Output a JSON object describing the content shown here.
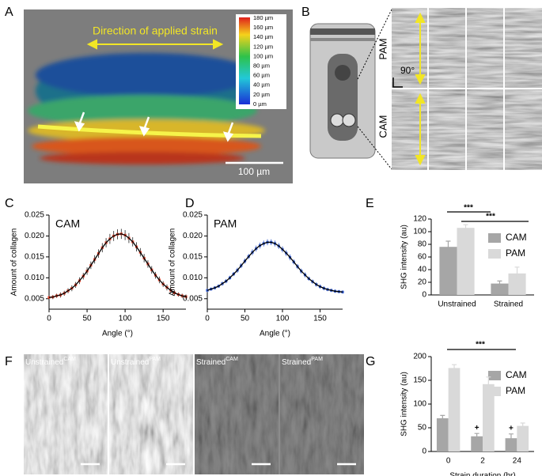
{
  "panel_labels": [
    "A",
    "B",
    "C",
    "D",
    "E",
    "F",
    "G"
  ],
  "panel_a": {
    "strain_label": "Direction of applied strain",
    "colorbar_ticks": [
      "180 µm",
      "160 µm",
      "140 µm",
      "120 µm",
      "100 µm",
      "80 µm",
      "60 µm",
      "40 µm",
      "20 µm",
      "0 µm"
    ],
    "scale_bar": "100 µm"
  },
  "panel_b": {
    "row_labels": [
      "PAM",
      "CAM"
    ],
    "angle": "90°"
  },
  "panel_f": {
    "images": [
      {
        "label": "Unstrained",
        "superscript": "CAM"
      },
      {
        "label": "Unstrained",
        "superscript": "PAM"
      },
      {
        "label": "Strained",
        "superscript": "CAM"
      },
      {
        "label": "Strained",
        "superscript": "PAM"
      }
    ]
  },
  "chart_data": [
    {
      "type": "line",
      "annotation": "CAM",
      "x_label": "Angle (°)",
      "y_label": "Amount of collagen",
      "x": [
        0,
        5,
        10,
        15,
        20,
        25,
        30,
        35,
        40,
        45,
        50,
        55,
        60,
        65,
        70,
        75,
        80,
        85,
        90,
        95,
        100,
        105,
        110,
        115,
        120,
        125,
        130,
        135,
        140,
        145,
        150,
        155,
        160,
        165,
        170,
        175,
        180
      ],
      "series": [
        {
          "color": "#e8452c",
          "line_color": "#000000",
          "error_color": "#222222",
          "values": [
            0.0053,
            0.0054,
            0.0057,
            0.0059,
            0.0063,
            0.0069,
            0.0075,
            0.0083,
            0.0093,
            0.0104,
            0.0116,
            0.013,
            0.0144,
            0.0158,
            0.0172,
            0.0184,
            0.0193,
            0.02,
            0.0204,
            0.0205,
            0.0202,
            0.0195,
            0.0186,
            0.0174,
            0.0161,
            0.0147,
            0.0133,
            0.0119,
            0.0106,
            0.0095,
            0.0085,
            0.0077,
            0.007,
            0.0064,
            0.006,
            0.0057,
            0.0055
          ],
          "errors": [
            0.0005,
            0.0005,
            0.0005,
            0.0006,
            0.0006,
            0.0006,
            0.0007,
            0.0007,
            0.0008,
            0.0008,
            0.0009,
            0.0009,
            0.001,
            0.001,
            0.0011,
            0.0011,
            0.0012,
            0.0012,
            0.0012,
            0.0012,
            0.0012,
            0.0012,
            0.0011,
            0.0011,
            0.001,
            0.001,
            0.0009,
            0.0009,
            0.0008,
            0.0008,
            0.0007,
            0.0007,
            0.0006,
            0.0006,
            0.0005,
            0.0005,
            0.0005
          ]
        }
      ],
      "xlim": [
        0,
        180
      ],
      "xticks": [
        0,
        50,
        100,
        150
      ],
      "ylim": [
        0.0025,
        0.025
      ],
      "yticks": [
        0.005,
        {
          "value": 0.01,
          "label": "0.010"
        },
        0.015,
        {
          "value": 0.02,
          "label": "0.020"
        },
        0.025
      ]
    },
    {
      "type": "line",
      "annotation": "PAM",
      "x_label": "Angle (°)",
      "y_label": "Amount of collagen",
      "x": [
        0,
        5,
        10,
        15,
        20,
        25,
        30,
        35,
        40,
        45,
        50,
        55,
        60,
        65,
        70,
        75,
        80,
        85,
        90,
        95,
        100,
        105,
        110,
        115,
        120,
        125,
        130,
        135,
        140,
        145,
        150,
        155,
        160,
        165,
        170,
        175,
        180
      ],
      "series": [
        {
          "color": "#2c55c8",
          "line_color": "#000000",
          "error_color": "#2c55c8",
          "values": [
            0.007,
            0.0073,
            0.0076,
            0.008,
            0.0086,
            0.0092,
            0.01,
            0.0109,
            0.0118,
            0.0129,
            0.014,
            0.0151,
            0.0161,
            0.017,
            0.0177,
            0.0182,
            0.0185,
            0.0185,
            0.0182,
            0.0176,
            0.0168,
            0.0159,
            0.0149,
            0.0138,
            0.0127,
            0.0116,
            0.0107,
            0.0098,
            0.0091,
            0.0084,
            0.0079,
            0.0075,
            0.0072,
            0.007,
            0.0068,
            0.0067,
            0.0066
          ],
          "errors": [
            0.0004,
            0.0004,
            0.0004,
            0.0004,
            0.0005,
            0.0005,
            0.0005,
            0.0005,
            0.0006,
            0.0006,
            0.0006,
            0.0006,
            0.0007,
            0.0007,
            0.0007,
            0.0007,
            0.0007,
            0.0007,
            0.0007,
            0.0007,
            0.0007,
            0.0007,
            0.0007,
            0.0006,
            0.0006,
            0.0006,
            0.0006,
            0.0005,
            0.0005,
            0.0005,
            0.0005,
            0.0005,
            0.0004,
            0.0004,
            0.0004,
            0.0004,
            0.0004
          ]
        }
      ],
      "xlim": [
        0,
        180
      ],
      "xticks": [
        0,
        50,
        100,
        150
      ],
      "ylim": [
        0.0025,
        0.025
      ],
      "yticks": [
        0.005,
        {
          "value": 0.01,
          "label": "0.010"
        },
        0.015,
        {
          "value": 0.02,
          "label": "0.020"
        },
        0.025
      ]
    },
    {
      "type": "bar",
      "y_label": "SHG intensity (au)",
      "categories": [
        "Unstrained",
        "Strained"
      ],
      "series": [
        {
          "name": "CAM",
          "color": "#a6a6a6",
          "values": [
            76,
            18
          ],
          "errors": [
            9,
            4
          ]
        },
        {
          "name": "PAM",
          "color": "#d9d9d9",
          "values": [
            106,
            34
          ],
          "errors": [
            5,
            10
          ]
        }
      ],
      "ylim": [
        0,
        120
      ],
      "yticks": [
        0,
        20,
        40,
        60,
        80,
        100,
        120
      ],
      "annotations": [
        "***",
        "***"
      ]
    },
    {
      "type": "bar",
      "y_label": "SHG intensity (au)",
      "x_label": "Strain duration (hr)",
      "categories": [
        "0",
        "2",
        "24"
      ],
      "series": [
        {
          "name": "CAM",
          "color": "#a6a6a6",
          "values": [
            70,
            32,
            28
          ],
          "errors": [
            6,
            6,
            9
          ]
        },
        {
          "name": "PAM",
          "color": "#d9d9d9",
          "values": [
            176,
            142,
            54
          ],
          "errors": [
            7,
            15,
            6
          ]
        }
      ],
      "ylim": [
        0,
        200
      ],
      "yticks": [
        0,
        50,
        100,
        150,
        200
      ],
      "annotations": [
        "***",
        "+",
        "+"
      ]
    }
  ]
}
